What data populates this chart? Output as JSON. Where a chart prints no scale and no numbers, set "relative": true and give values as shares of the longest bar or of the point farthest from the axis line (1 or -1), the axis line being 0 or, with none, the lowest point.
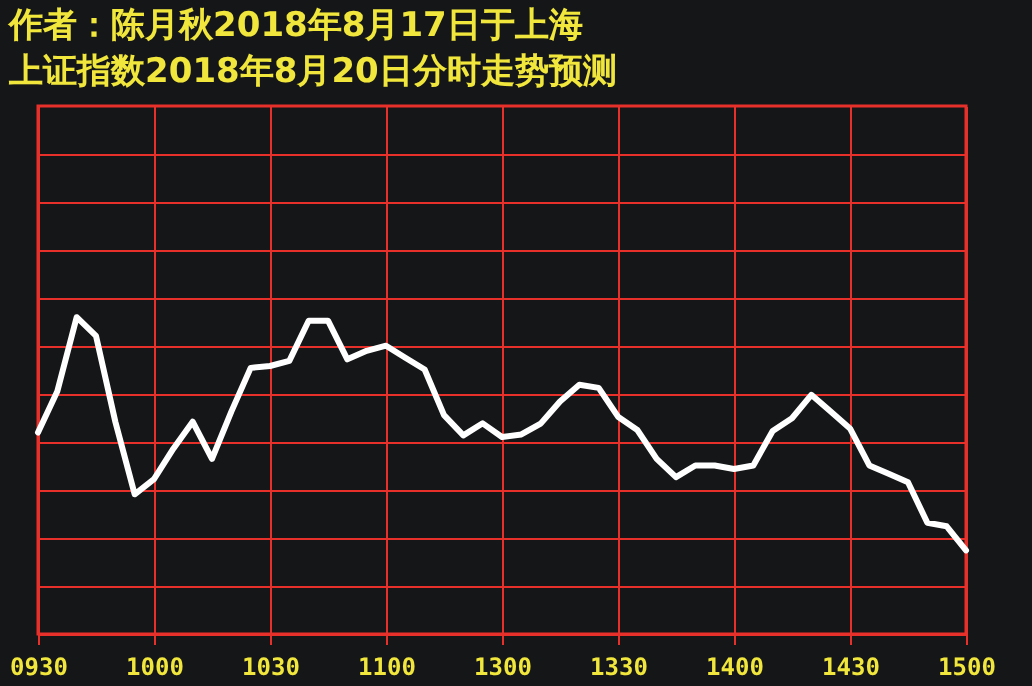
{
  "chart_data": {
    "type": "line",
    "title": "作者：陈月秋2018年8月17日于上海",
    "subtitle": "上证指数2018年8月20日分时走势预测",
    "relative": true,
    "grid": true,
    "marker": "none",
    "line_style": "solid",
    "categories": [
      "0930",
      null,
      null,
      null,
      null,
      null,
      "1000",
      null,
      null,
      null,
      null,
      null,
      "1030",
      null,
      null,
      null,
      null,
      null,
      "1100",
      null,
      null,
      null,
      null,
      null,
      "1300",
      null,
      null,
      null,
      null,
      null,
      "1330",
      null,
      null,
      null,
      null,
      null,
      "1400",
      null,
      null,
      null,
      null,
      null,
      "1430",
      null,
      null,
      null,
      null,
      null,
      "1500"
    ],
    "series": [
      {
        "color": "#ffffff",
        "values": [
          0.636,
          0.766,
          1,
          0.941,
          0.67,
          0.441,
          0.489,
          0.585,
          0.67,
          0.553,
          0.702,
          0.84,
          0.846,
          0.862,
          0.989,
          0.989,
          0.867,
          0.894,
          0.91,
          0.872,
          0.835,
          0.691,
          0.627,
          0.665,
          0.622,
          0.63,
          0.664,
          0.734,
          0.787,
          0.777,
          0.686,
          0.644,
          0.553,
          0.495,
          0.532,
          0.532,
          0.521,
          0.532,
          0.641,
          0.681,
          0.755,
          0.702,
          0.649,
          0.532,
          0.506,
          0.479,
          0.351,
          0.34,
          0.264
        ]
      }
    ]
  }
}
